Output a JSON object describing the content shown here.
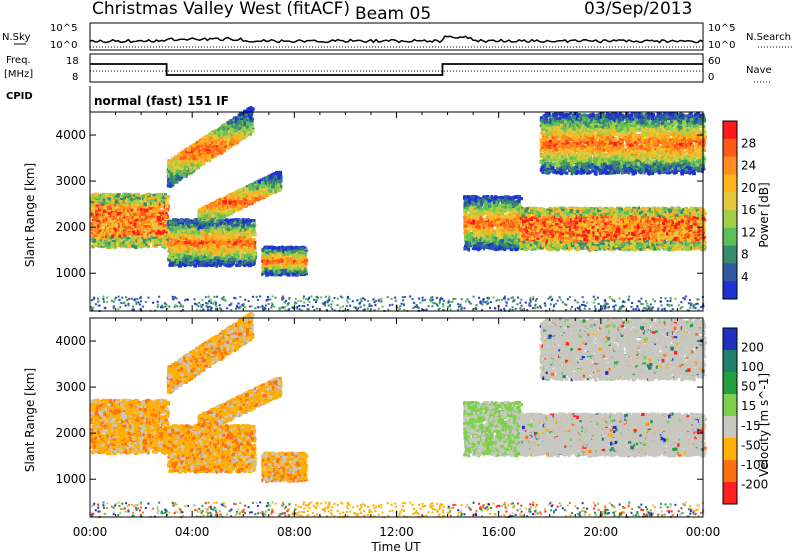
{
  "header": {
    "title": "Christmas Valley West (fitACF)",
    "beam": "Beam 05",
    "date": "03/Sep/2013"
  },
  "top_panels": {
    "nsky_label": "N.Sky",
    "nsearch_label": "N.Search",
    "nsky_ticks": [
      "10^5",
      "10^0"
    ],
    "nsky_right_ticks": [
      "10^5",
      "10^0"
    ],
    "freq_label": "Freq.",
    "freq_unit": "[MHz]",
    "freq_ticks": [
      "18",
      "8"
    ],
    "nave_label": "Nave",
    "nave_ticks": [
      "60",
      "0"
    ],
    "cpid_label": "CPID",
    "cpid_value": "normal (fast) 151 IF"
  },
  "chart_data": [
    {
      "type": "heatmap",
      "panel": "power",
      "ylabel": "Slant Range [km]",
      "yticks": [
        "4000",
        "3000",
        "2000",
        "1000"
      ],
      "ylim": [
        180,
        4500
      ],
      "colorbar_label": "Power [dB]",
      "colorbar_ticks": [
        "28",
        "24",
        "20",
        "16",
        "12",
        "8",
        "4"
      ],
      "colorbar_colors": [
        "#ff1a1a",
        "#ff5a1a",
        "#ff8c1e",
        "#ffb41e",
        "#e6c83c",
        "#9fd046",
        "#5dbe5a",
        "#3a8a6e",
        "#2e5aa0",
        "#1e32d2"
      ],
      "x_start": "00:00",
      "x_end": "24:00",
      "regions": [
        {
          "name": "evening-band-lower",
          "t0": 0.0,
          "t1": 3.0,
          "r0": 1600,
          "r1": 2750
        },
        {
          "name": "morning-band",
          "t0": 3.0,
          "t1": 6.4,
          "r0": 1200,
          "r1": 2200
        },
        {
          "name": "diagonal-upper",
          "t0": 3.0,
          "t1": 6.3,
          "r0": 2900,
          "r1": 4500
        },
        {
          "name": "diagonal-mid",
          "t0": 4.2,
          "t1": 7.4,
          "r0": 2000,
          "r1": 3150
        },
        {
          "name": "patch",
          "t0": 6.7,
          "t1": 8.4,
          "r0": 1000,
          "r1": 1600
        },
        {
          "name": "dawn-band",
          "t0": 14.6,
          "t1": 16.8,
          "r0": 1550,
          "r1": 2700
        },
        {
          "name": "day-band",
          "t0": 16.8,
          "t1": 24.0,
          "r0": 1550,
          "r1": 2450
        },
        {
          "name": "day-upper",
          "t0": 17.6,
          "t1": 24.0,
          "r0": 3200,
          "r1": 4500
        }
      ]
    },
    {
      "type": "heatmap",
      "panel": "velocity",
      "ylabel": "Slant Range [km]",
      "yticks": [
        "4000",
        "3000",
        "2000",
        "1000"
      ],
      "ylim": [
        180,
        4500
      ],
      "colorbar_label": "Velocity [m s^-1]",
      "colorbar_ticks": [
        "200",
        "100",
        "50",
        "15",
        "-15",
        "-50",
        "-100",
        "-200"
      ],
      "colorbar_colors": [
        "#2030c0",
        "#208070",
        "#20a040",
        "#7cd04c",
        "#c8c8c0",
        "#ffb000",
        "#ff7010",
        "#ff2020"
      ],
      "xlabel": "Time UT",
      "xticks": [
        "00:00",
        "04:00",
        "08:00",
        "12:00",
        "16:00",
        "20:00",
        "00:00"
      ]
    }
  ]
}
